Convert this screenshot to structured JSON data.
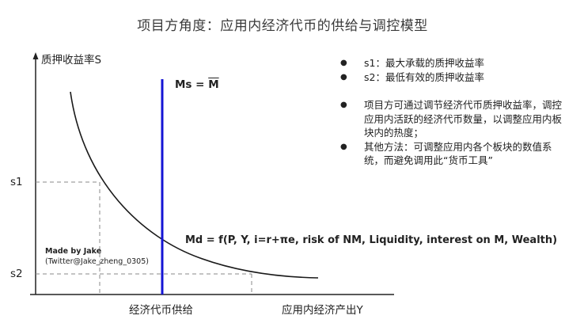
{
  "title": "项目方角度：应用内经济代币的供给与调控模型",
  "axes": {
    "y_label": "质押收益率S",
    "x_label_supply": "经济代币供给",
    "x_label_output": "应用内经济产出Y",
    "s1": "s1",
    "s2": "s2"
  },
  "curves": {
    "ms_prefix": "Ms = ",
    "ms_bar": "M",
    "md_label": "Md = f(P, Y, i=r+πe, risk of NM, Liquidity, interest on M, Wealth)"
  },
  "credit": {
    "line1": "Made by Jake",
    "line2": "(Twitter@Jake_zheng_0305)"
  },
  "notes": [
    "s1：最大承载的质押收益率",
    "s2：最低有效的质押收益率",
    "项目方可通过调节经济代币质押收益率，调控应用内活跃的经济代币数量，以调整应用内板块内的热度；",
    "其他方法：可调整应用内各个板块的数值系统，而避免调用此“货币工具”"
  ],
  "colors": {
    "supply_line": "#1414d4",
    "demand_curve": "#1a1a1a",
    "dashed": "#8a8a8a"
  }
}
